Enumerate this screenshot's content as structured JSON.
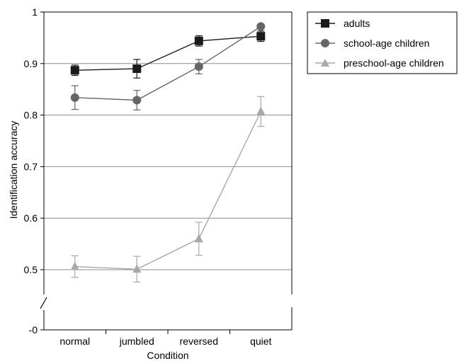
{
  "chart_data": {
    "type": "line",
    "xlabel": "Condition",
    "ylabel": "Identification accuracy",
    "categories": [
      "normal",
      "jumbled",
      "reversed",
      "quiet"
    ],
    "ylim": [
      0.45,
      1.0
    ],
    "axis_break": true,
    "y_ticks": [
      {
        "value": 1.0,
        "label": "1"
      },
      {
        "value": 0.9,
        "label": "0.9"
      },
      {
        "value": 0.8,
        "label": "0.8"
      },
      {
        "value": 0.7,
        "label": "0.7"
      },
      {
        "value": 0.6,
        "label": "0.6"
      },
      {
        "value": 0.5,
        "label": "0.5"
      }
    ],
    "bottom_tick_label": "-0",
    "grid": "horizontal",
    "legend_position": "top-right",
    "series": [
      {
        "name": "adults",
        "marker": "square",
        "color": "#1a1a1a",
        "values": [
          0.887,
          0.89,
          0.944,
          0.953
        ],
        "error": [
          0.01,
          0.018,
          0.01,
          0.01
        ]
      },
      {
        "name": "school-age children",
        "marker": "circle",
        "color": "#666666",
        "values": [
          0.834,
          0.829,
          0.894,
          0.972
        ],
        "error": [
          0.023,
          0.019,
          0.014,
          0.004
        ]
      },
      {
        "name": "preschool-age children",
        "marker": "triangle",
        "color": "#a8a8a8",
        "values": [
          0.506,
          0.501,
          0.56,
          0.807
        ],
        "error": [
          0.021,
          0.025,
          0.032,
          0.029
        ]
      }
    ]
  }
}
